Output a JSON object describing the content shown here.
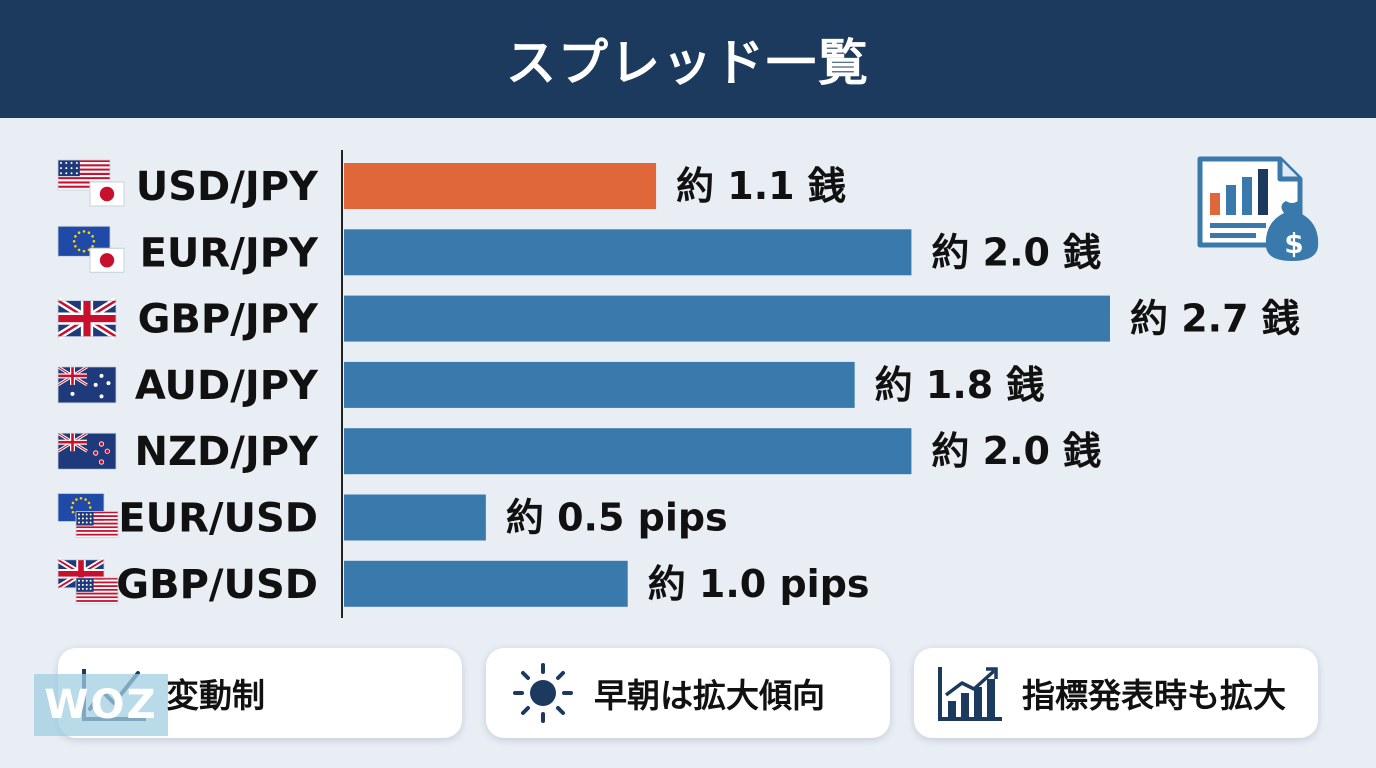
{
  "header": {
    "title": "スプレッド一覧"
  },
  "chart_data": {
    "type": "bar",
    "orientation": "horizontal",
    "categories": [
      "USD/JPY",
      "EUR/JPY",
      "GBP/JPY",
      "AUD/JPY",
      "NZD/JPY",
      "EUR/USD",
      "GBP/USD"
    ],
    "values": [
      1.1,
      2.0,
      2.7,
      1.8,
      2.0,
      0.5,
      1.0
    ],
    "value_labels": [
      "約 1.1 銭",
      "約 2.0 銭",
      "約 2.7 銭",
      "約 1.8 銭",
      "約 2.0 銭",
      "約 0.5 pips",
      "約 1.0 pips"
    ],
    "flags": [
      "us-jp",
      "eu-jp",
      "gb",
      "au",
      "nz",
      "eu-us",
      "gb-us"
    ],
    "highlight_index": 0,
    "xlim": [
      0,
      2.7
    ],
    "grid": false,
    "colors": {
      "highlight": "#e0673a",
      "default": "#3a79ab"
    }
  },
  "features": [
    {
      "icon": "line-chart-icon",
      "label": "変動制"
    },
    {
      "icon": "sun-icon",
      "label": "早朝は拡大傾向"
    },
    {
      "icon": "rising-bar-chart-icon",
      "label": "指標発表時も拡大"
    }
  ],
  "watermark": "WOZ",
  "colors": {
    "header": "#1c3a5e",
    "background": "#e9eef5",
    "icon_dark": "#1c3a5e",
    "icon_blue": "#3a79ab",
    "icon_orange": "#e0673a"
  }
}
